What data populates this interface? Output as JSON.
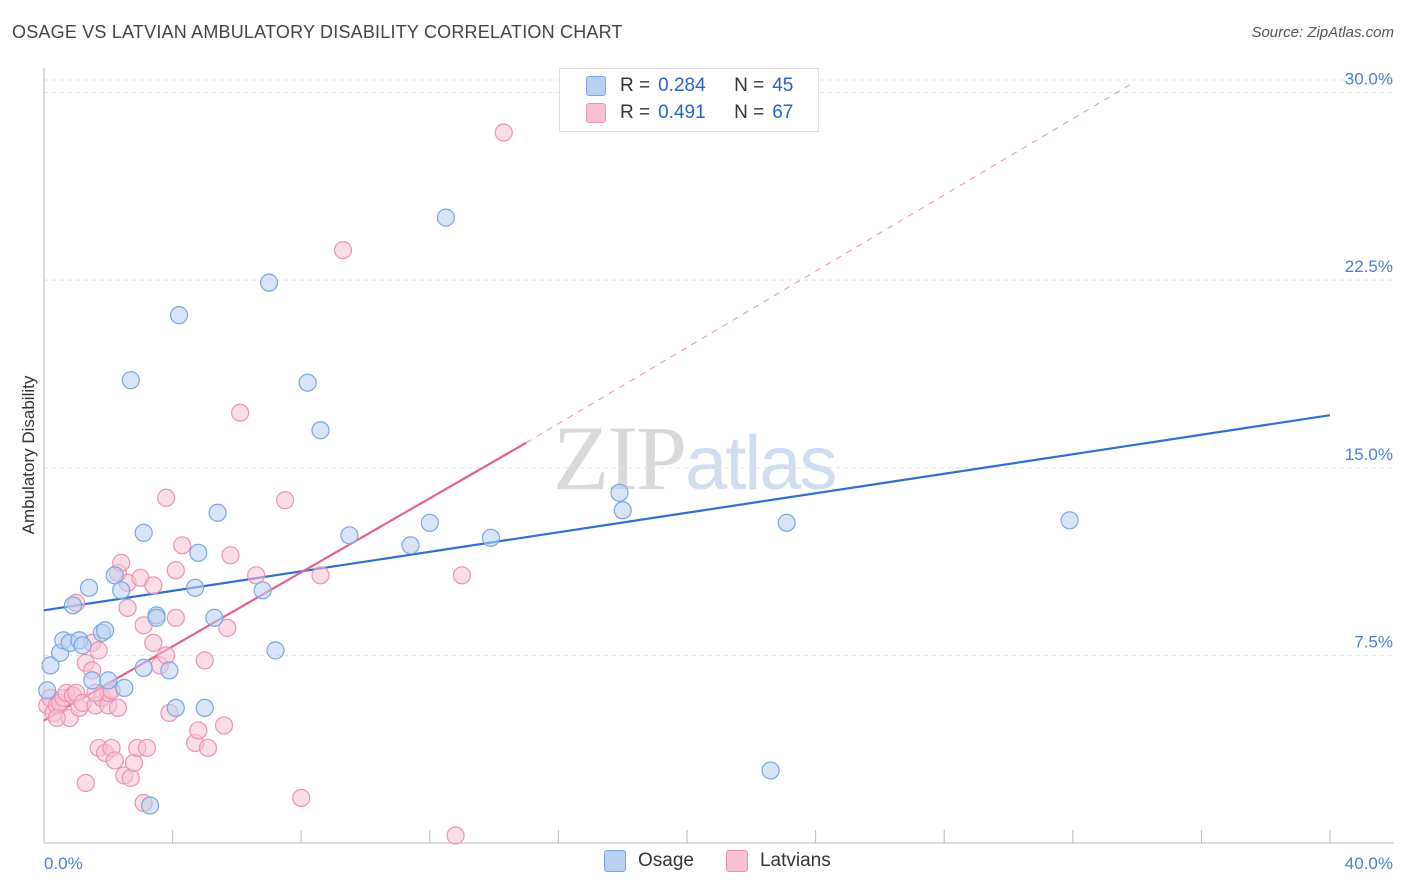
{
  "title": "OSAGE VS LATVIAN AMBULATORY DISABILITY CORRELATION CHART",
  "source": "Source: ZipAtlas.com",
  "watermark": {
    "zip": "ZIP",
    "atlas": "atlas"
  },
  "legend": {
    "osage": {
      "r_label": "R =",
      "r_value": "0.284",
      "n_label": "N =",
      "n_value": "45"
    },
    "latvians": {
      "r_label": "R =",
      "r_value": "0.491",
      "n_label": "N =",
      "n_value": "67"
    }
  },
  "bottom_legend": {
    "osage": "Osage",
    "latvians": "Latvians"
  },
  "colors": {
    "osage_fill": "#b8d0f2",
    "osage_stroke": "#7aa6e0",
    "osage_line": "#2f6fd0",
    "latvian_fill": "#f7c1d3",
    "latvian_stroke": "#ec93b1",
    "latvian_line": "#e4638e",
    "tick_text": "#4a7fd4",
    "grid": "#e3e3e3"
  },
  "chart_data": {
    "type": "scatter",
    "title": "OSAGE VS LATVIAN AMBULATORY DISABILITY CORRELATION CHART",
    "xlabel": "",
    "ylabel": "Ambulatory Disability",
    "xlim": [
      0,
      40
    ],
    "ylim": [
      0,
      30.5
    ],
    "x_tick_labels": [
      {
        "value": 0,
        "label": "0.0%"
      },
      {
        "value": 40,
        "label": "40.0%"
      }
    ],
    "y_ticks": [
      {
        "value": 7.5,
        "label": "7.5%"
      },
      {
        "value": 15,
        "label": "15.0%"
      },
      {
        "value": 22.5,
        "label": "22.5%"
      },
      {
        "value": 30,
        "label": "30.0%"
      }
    ],
    "x_minor_ticks": [
      0,
      4,
      8,
      12,
      16,
      20,
      24,
      28,
      32,
      36,
      40
    ],
    "series": [
      {
        "name": "Osage",
        "points": [
          [
            0.2,
            7.1
          ],
          [
            0.5,
            7.6
          ],
          [
            0.6,
            8.1
          ],
          [
            0.8,
            8.0
          ],
          [
            0.9,
            9.5
          ],
          [
            1.1,
            8.1
          ],
          [
            1.2,
            7.9
          ],
          [
            1.4,
            10.2
          ],
          [
            1.5,
            6.5
          ],
          [
            1.8,
            8.4
          ],
          [
            1.9,
            8.5
          ],
          [
            2.0,
            6.5
          ],
          [
            2.2,
            10.7
          ],
          [
            2.4,
            10.1
          ],
          [
            2.5,
            6.2
          ],
          [
            2.7,
            18.5
          ],
          [
            3.1,
            7.0
          ],
          [
            3.1,
            12.4
          ],
          [
            3.3,
            1.5
          ],
          [
            3.5,
            9.1
          ],
          [
            3.5,
            9.0
          ],
          [
            3.9,
            6.9
          ],
          [
            4.1,
            5.4
          ],
          [
            4.2,
            21.1
          ],
          [
            4.7,
            10.2
          ],
          [
            4.8,
            11.6
          ],
          [
            5.0,
            5.4
          ],
          [
            5.3,
            9.0
          ],
          [
            5.4,
            13.2
          ],
          [
            6.8,
            10.1
          ],
          [
            7.0,
            22.4
          ],
          [
            7.2,
            7.7
          ],
          [
            8.2,
            18.4
          ],
          [
            8.6,
            16.5
          ],
          [
            9.5,
            12.3
          ],
          [
            11.4,
            11.9
          ],
          [
            12.0,
            12.8
          ],
          [
            12.5,
            25.0
          ],
          [
            13.9,
            12.2
          ],
          [
            17.9,
            14.0
          ],
          [
            18.0,
            13.3
          ],
          [
            22.6,
            2.9
          ],
          [
            23.1,
            12.8
          ],
          [
            31.9,
            12.9
          ],
          [
            0.1,
            6.1
          ]
        ]
      },
      {
        "name": "Latvians",
        "points": [
          [
            0.1,
            5.5
          ],
          [
            0.2,
            5.8
          ],
          [
            0.3,
            5.2
          ],
          [
            0.4,
            5.5
          ],
          [
            0.5,
            5.6
          ],
          [
            0.6,
            5.8
          ],
          [
            0.7,
            6.0
          ],
          [
            0.8,
            5.0
          ],
          [
            0.9,
            5.9
          ],
          [
            1.0,
            6.0
          ],
          [
            1.0,
            9.6
          ],
          [
            1.1,
            5.4
          ],
          [
            1.2,
            5.6
          ],
          [
            1.3,
            7.2
          ],
          [
            1.3,
            2.4
          ],
          [
            1.5,
            8.0
          ],
          [
            1.5,
            6.9
          ],
          [
            1.6,
            5.5
          ],
          [
            1.7,
            3.8
          ],
          [
            1.7,
            7.7
          ],
          [
            1.8,
            5.8
          ],
          [
            1.9,
            3.6
          ],
          [
            2.0,
            5.5
          ],
          [
            2.0,
            6.0
          ],
          [
            2.1,
            3.8
          ],
          [
            2.2,
            3.3
          ],
          [
            2.3,
            10.8
          ],
          [
            2.3,
            5.4
          ],
          [
            2.4,
            11.2
          ],
          [
            2.5,
            2.7
          ],
          [
            2.6,
            9.4
          ],
          [
            2.6,
            10.4
          ],
          [
            2.7,
            2.6
          ],
          [
            2.8,
            3.2
          ],
          [
            2.9,
            3.8
          ],
          [
            3.0,
            10.6
          ],
          [
            3.1,
            8.7
          ],
          [
            3.1,
            1.6
          ],
          [
            3.2,
            3.8
          ],
          [
            3.4,
            10.3
          ],
          [
            3.4,
            8.0
          ],
          [
            3.6,
            7.1
          ],
          [
            3.8,
            13.8
          ],
          [
            3.8,
            7.5
          ],
          [
            3.9,
            5.2
          ],
          [
            4.1,
            10.9
          ],
          [
            4.1,
            9.0
          ],
          [
            4.3,
            11.9
          ],
          [
            4.7,
            4.0
          ],
          [
            4.8,
            4.5
          ],
          [
            5.0,
            7.3
          ],
          [
            5.1,
            3.8
          ],
          [
            5.6,
            4.7
          ],
          [
            5.7,
            8.6
          ],
          [
            5.8,
            11.5
          ],
          [
            6.1,
            17.2
          ],
          [
            6.6,
            10.7
          ],
          [
            7.5,
            13.7
          ],
          [
            8.0,
            1.8
          ],
          [
            8.6,
            10.7
          ],
          [
            9.3,
            23.7
          ],
          [
            12.8,
            0.3
          ],
          [
            13.0,
            10.7
          ],
          [
            14.3,
            28.4
          ],
          [
            0.4,
            5.0
          ],
          [
            1.6,
            6.0
          ],
          [
            2.1,
            6.1
          ]
        ]
      }
    ],
    "trendlines": [
      {
        "series": "Osage",
        "from": [
          0,
          9.3
        ],
        "to": [
          40,
          17.1
        ],
        "style": "solid"
      },
      {
        "series": "Latvians",
        "from": [
          0,
          4.9
        ],
        "to": [
          15.0,
          16.0
        ],
        "style": "solid"
      },
      {
        "series": "Latvians",
        "from": [
          15.0,
          16.0
        ],
        "to": [
          33.9,
          30.4
        ],
        "style": "dashed"
      }
    ]
  }
}
